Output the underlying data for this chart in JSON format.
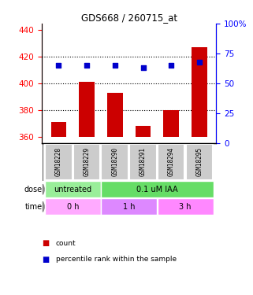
{
  "title": "GDS668 / 260715_at",
  "samples": [
    "GSM18228",
    "GSM18229",
    "GSM18290",
    "GSM18291",
    "GSM18294",
    "GSM18295"
  ],
  "bar_values": [
    371,
    401,
    393,
    368,
    380,
    427
  ],
  "percentile_values": [
    65,
    65,
    65,
    63,
    65,
    68
  ],
  "ylim_left": [
    355,
    445
  ],
  "ylim_right": [
    0,
    100
  ],
  "yticks_left": [
    360,
    380,
    400,
    420,
    440
  ],
  "yticks_right": [
    0,
    25,
    50,
    75,
    100
  ],
  "bar_color": "#cc0000",
  "dot_color": "#0000cc",
  "bar_bottom": 360,
  "dose_labels": [
    {
      "text": "untreated",
      "start": 0,
      "end": 2,
      "color": "#99ee99"
    },
    {
      "text": "0.1 uM IAA",
      "start": 2,
      "end": 6,
      "color": "#66dd66"
    }
  ],
  "time_labels": [
    {
      "text": "0 h",
      "start": 0,
      "end": 2,
      "color": "#ffaaff"
    },
    {
      "text": "1 h",
      "start": 2,
      "end": 4,
      "color": "#dd88ff"
    },
    {
      "text": "3 h",
      "start": 4,
      "end": 6,
      "color": "#ff88ff"
    }
  ],
  "legend_count_color": "#cc0000",
  "legend_percentile_color": "#0000cc",
  "sample_box_color": "#cccccc",
  "hgrid_yticks": [
    380,
    400,
    420
  ],
  "bg_color": "#ffffff"
}
